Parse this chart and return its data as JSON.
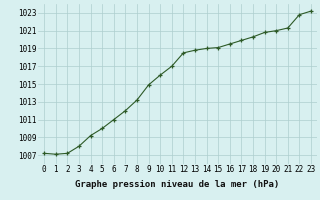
{
  "x": [
    0,
    1,
    2,
    3,
    4,
    5,
    6,
    7,
    8,
    9,
    10,
    11,
    12,
    13,
    14,
    15,
    16,
    17,
    18,
    19,
    20,
    21,
    22,
    23
  ],
  "y": [
    1007.2,
    1007.1,
    1007.2,
    1008.0,
    1009.2,
    1010.0,
    1011.0,
    1012.0,
    1013.2,
    1014.9,
    1016.0,
    1017.0,
    1018.5,
    1018.8,
    1019.0,
    1019.1,
    1019.5,
    1019.9,
    1020.3,
    1020.8,
    1021.0,
    1021.3,
    1022.8,
    1023.2
  ],
  "ylim": [
    1006,
    1024
  ],
  "xlim": [
    -0.5,
    23.5
  ],
  "yticks": [
    1007,
    1009,
    1011,
    1013,
    1015,
    1017,
    1019,
    1021,
    1023
  ],
  "xticks": [
    0,
    1,
    2,
    3,
    4,
    5,
    6,
    7,
    8,
    9,
    10,
    11,
    12,
    13,
    14,
    15,
    16,
    17,
    18,
    19,
    20,
    21,
    22,
    23
  ],
  "xtick_labels": [
    "0",
    "1",
    "2",
    "3",
    "4",
    "5",
    "6",
    "7",
    "8",
    "9",
    "10",
    "11",
    "12",
    "13",
    "14",
    "15",
    "16",
    "17",
    "18",
    "19",
    "20",
    "21",
    "22",
    "23"
  ],
  "line_color": "#2d5a27",
  "marker_color": "#2d5a27",
  "bg_color": "#d8f0f0",
  "grid_color": "#aecece",
  "xlabel": "Graphe pression niveau de la mer (hPa)",
  "xlabel_fontsize": 6.5,
  "tick_fontsize": 5.5
}
